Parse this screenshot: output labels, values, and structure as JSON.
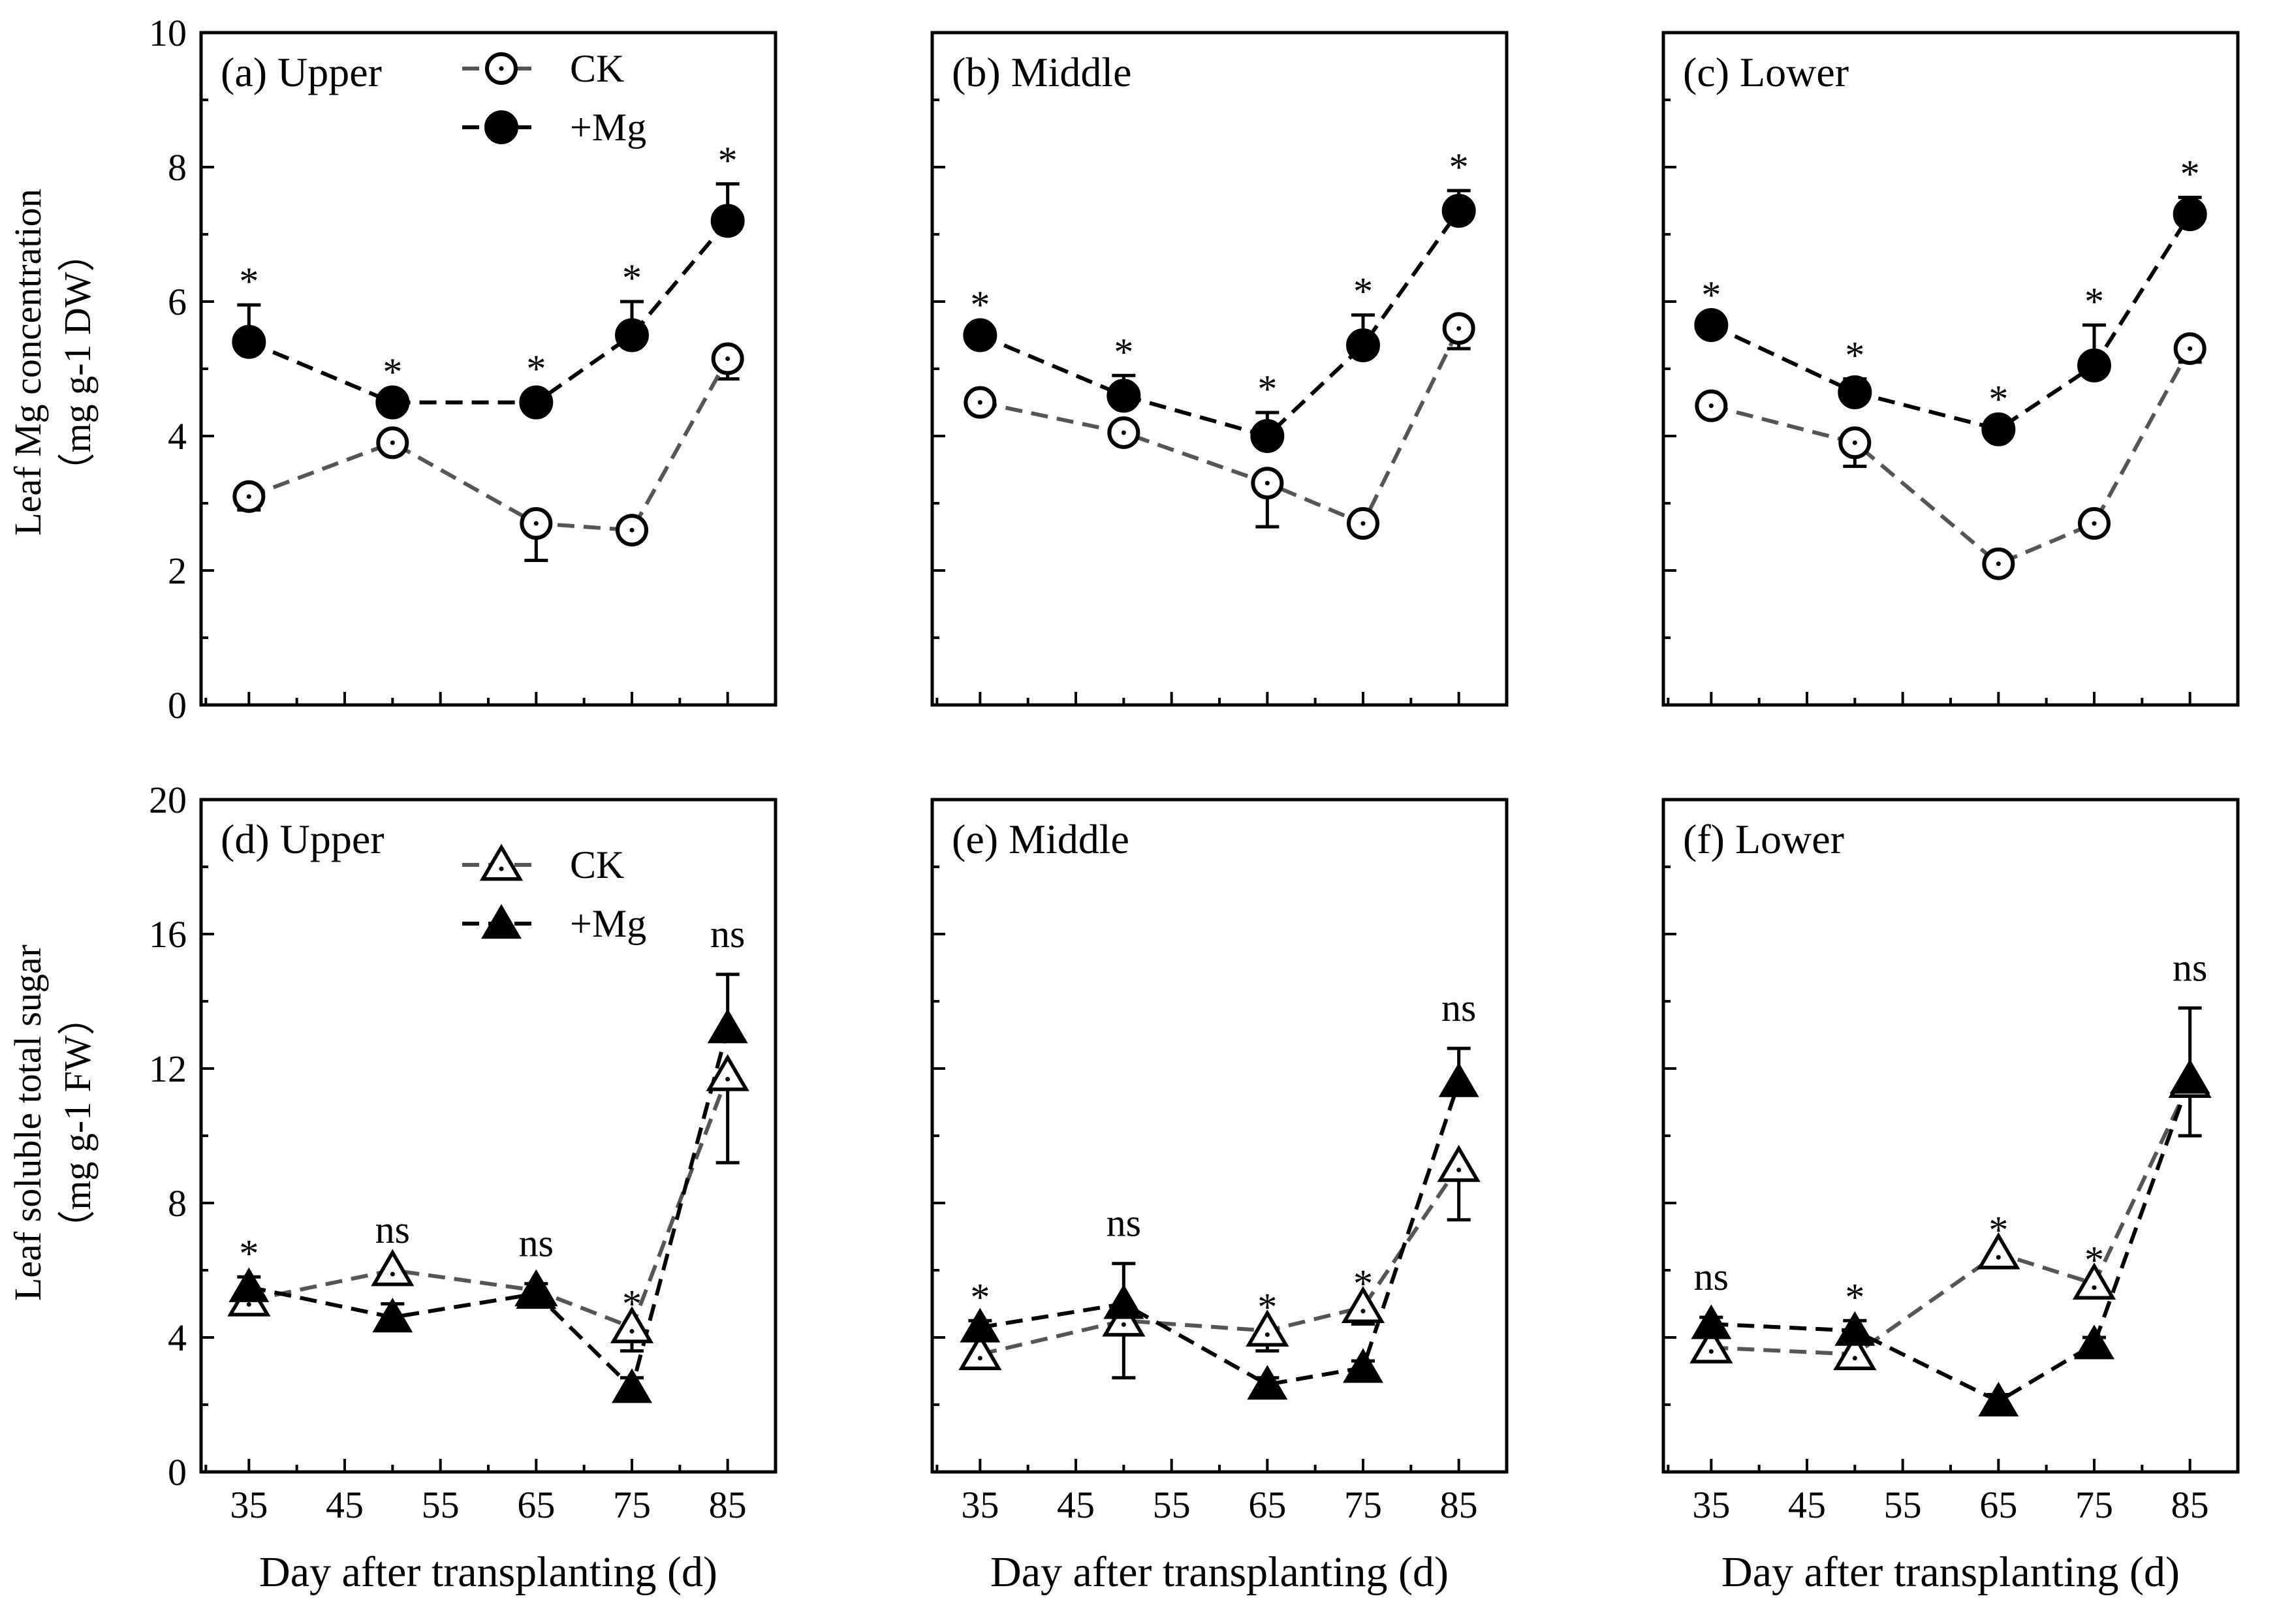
{
  "chart_data": [
    {
      "id": "a",
      "type": "line",
      "title": "(a) Upper",
      "xlabel": "",
      "ylabel": "Leaf Mg concentration",
      "ylabel_unit": "（mg g-1 DW）",
      "x": [
        35,
        50,
        65,
        75,
        85
      ],
      "xlim": [
        30,
        90
      ],
      "xticks": [
        35,
        45,
        55,
        65,
        75,
        85
      ],
      "xtick_labels": [],
      "ylim": [
        0,
        10
      ],
      "yticks": [
        0,
        2,
        4,
        6,
        8,
        10
      ],
      "ytick_labels": [
        "0",
        "2",
        "4",
        "6",
        "8",
        "10"
      ],
      "marker": "circle",
      "legend": [
        "CK",
        "+Mg"
      ],
      "series": [
        {
          "name": "CK",
          "values": [
            3.1,
            3.9,
            2.7,
            2.6,
            5.15
          ],
          "errors": [
            0.2,
            0.1,
            0.55,
            0.1,
            0.3
          ]
        },
        {
          "name": "+Mg",
          "values": [
            5.4,
            4.5,
            4.5,
            5.5,
            7.2
          ],
          "errors": [
            0.55,
            0.1,
            0.15,
            0.5,
            0.55
          ]
        }
      ],
      "annotations": [
        "*",
        "*",
        "*",
        "*",
        "*"
      ]
    },
    {
      "id": "b",
      "type": "line",
      "title": "(b) Middle",
      "x": [
        35,
        50,
        65,
        75,
        85
      ],
      "xlim": [
        30,
        90
      ],
      "xticks": [
        35,
        45,
        55,
        65,
        75,
        85
      ],
      "xtick_labels": [],
      "ylim": [
        0,
        10
      ],
      "yticks": [
        0,
        2,
        4,
        6,
        8,
        10
      ],
      "ytick_labels": [],
      "marker": "circle",
      "series": [
        {
          "name": "CK",
          "values": [
            4.5,
            4.05,
            3.3,
            2.7,
            5.6
          ],
          "errors": [
            0.1,
            0.1,
            0.65,
            0.1,
            0.3
          ]
        },
        {
          "name": "+Mg",
          "values": [
            5.5,
            4.6,
            4.0,
            5.35,
            7.35
          ],
          "errors": [
            0.1,
            0.3,
            0.35,
            0.45,
            0.3
          ]
        }
      ],
      "annotations": [
        "*",
        "*",
        "*",
        "*",
        "*"
      ]
    },
    {
      "id": "c",
      "type": "line",
      "title": "(c) Lower",
      "x": [
        35,
        50,
        65,
        75,
        85
      ],
      "xlim": [
        30,
        90
      ],
      "xticks": [
        35,
        45,
        55,
        65,
        75,
        85
      ],
      "xtick_labels": [],
      "ylim": [
        0,
        10
      ],
      "yticks": [
        0,
        2,
        4,
        6,
        8,
        10
      ],
      "ytick_labels": [],
      "marker": "circle",
      "series": [
        {
          "name": "CK",
          "values": [
            4.45,
            3.9,
            2.1,
            2.7,
            5.3
          ],
          "errors": [
            0.1,
            0.35,
            0.1,
            0.1,
            0.2
          ]
        },
        {
          "name": "+Mg",
          "values": [
            5.65,
            4.65,
            4.1,
            5.05,
            7.3
          ],
          "errors": [
            0.1,
            0.2,
            0.1,
            0.6,
            0.25
          ]
        }
      ],
      "annotations": [
        "*",
        "*",
        "*",
        "*",
        "*"
      ]
    },
    {
      "id": "d",
      "type": "line",
      "title": "(d) Upper",
      "xlabel": "Day after transplanting (d)",
      "ylabel": "Leaf soluble total sugar",
      "ylabel_unit": "（mg g-1 FW）",
      "x": [
        35,
        50,
        65,
        75,
        85
      ],
      "xlim": [
        30,
        90
      ],
      "xticks": [
        35,
        45,
        55,
        65,
        75,
        85
      ],
      "xtick_labels": [
        "35",
        "45",
        "55",
        "65",
        "75",
        "85"
      ],
      "ylim": [
        0,
        20
      ],
      "yticks": [
        0,
        4,
        8,
        12,
        16,
        20
      ],
      "ytick_labels": [
        "0",
        "4",
        "8",
        "12",
        "16",
        "20"
      ],
      "marker": "triangle",
      "legend": [
        "CK",
        "+Mg"
      ],
      "series": [
        {
          "name": "CK",
          "values": [
            5.1,
            6.0,
            5.4,
            4.3,
            11.8
          ],
          "errors": [
            0.3,
            0.2,
            0.3,
            0.7,
            2.6
          ]
        },
        {
          "name": "+Mg",
          "values": [
            5.5,
            4.6,
            5.3,
            2.5,
            13.2
          ],
          "errors": [
            0.3,
            0.4,
            0.3,
            0.3,
            1.6
          ]
        }
      ],
      "annotations": [
        "*",
        "ns",
        "ns",
        "*",
        "ns"
      ]
    },
    {
      "id": "e",
      "type": "line",
      "title": "(e) Middle",
      "xlabel": "Day after transplanting (d)",
      "x": [
        35,
        50,
        65,
        75,
        85
      ],
      "xlim": [
        30,
        90
      ],
      "xticks": [
        35,
        45,
        55,
        65,
        75,
        85
      ],
      "xtick_labels": [
        "35",
        "45",
        "55",
        "65",
        "75",
        "85"
      ],
      "ylim": [
        0,
        20
      ],
      "yticks": [
        0,
        4,
        8,
        12,
        16,
        20
      ],
      "ytick_labels": [],
      "marker": "triangle",
      "series": [
        {
          "name": "CK",
          "values": [
            3.5,
            4.5,
            4.2,
            4.9,
            9.1
          ],
          "errors": [
            0.2,
            1.7,
            0.6,
            0.5,
            1.6
          ]
        },
        {
          "name": "+Mg",
          "values": [
            4.3,
            5.0,
            2.6,
            3.1,
            11.6
          ],
          "errors": [
            0.2,
            1.2,
            0.2,
            0.2,
            1.0
          ]
        }
      ],
      "annotations": [
        "*",
        "ns",
        "*",
        "*",
        "ns"
      ]
    },
    {
      "id": "f",
      "type": "line",
      "title": "(f) Lower",
      "xlabel": "Day after transplanting (d)",
      "x": [
        35,
        50,
        65,
        75,
        85
      ],
      "xlim": [
        30,
        90
      ],
      "xticks": [
        35,
        45,
        55,
        65,
        75,
        85
      ],
      "xtick_labels": [
        "35",
        "45",
        "55",
        "65",
        "75",
        "85"
      ],
      "ylim": [
        0,
        20
      ],
      "yticks": [
        0,
        4,
        8,
        12,
        16,
        20
      ],
      "ytick_labels": [],
      "marker": "triangle",
      "series": [
        {
          "name": "CK",
          "values": [
            3.7,
            3.5,
            6.5,
            5.6,
            11.6
          ],
          "errors": [
            0.4,
            0.3,
            0.4,
            0.3,
            1.6
          ]
        },
        {
          "name": "+Mg",
          "values": [
            4.4,
            4.2,
            2.1,
            3.8,
            11.7
          ],
          "errors": [
            0.2,
            0.3,
            0.2,
            0.2,
            2.1
          ]
        }
      ],
      "annotations": [
        "ns",
        "*",
        "*",
        "*",
        "ns"
      ]
    }
  ]
}
